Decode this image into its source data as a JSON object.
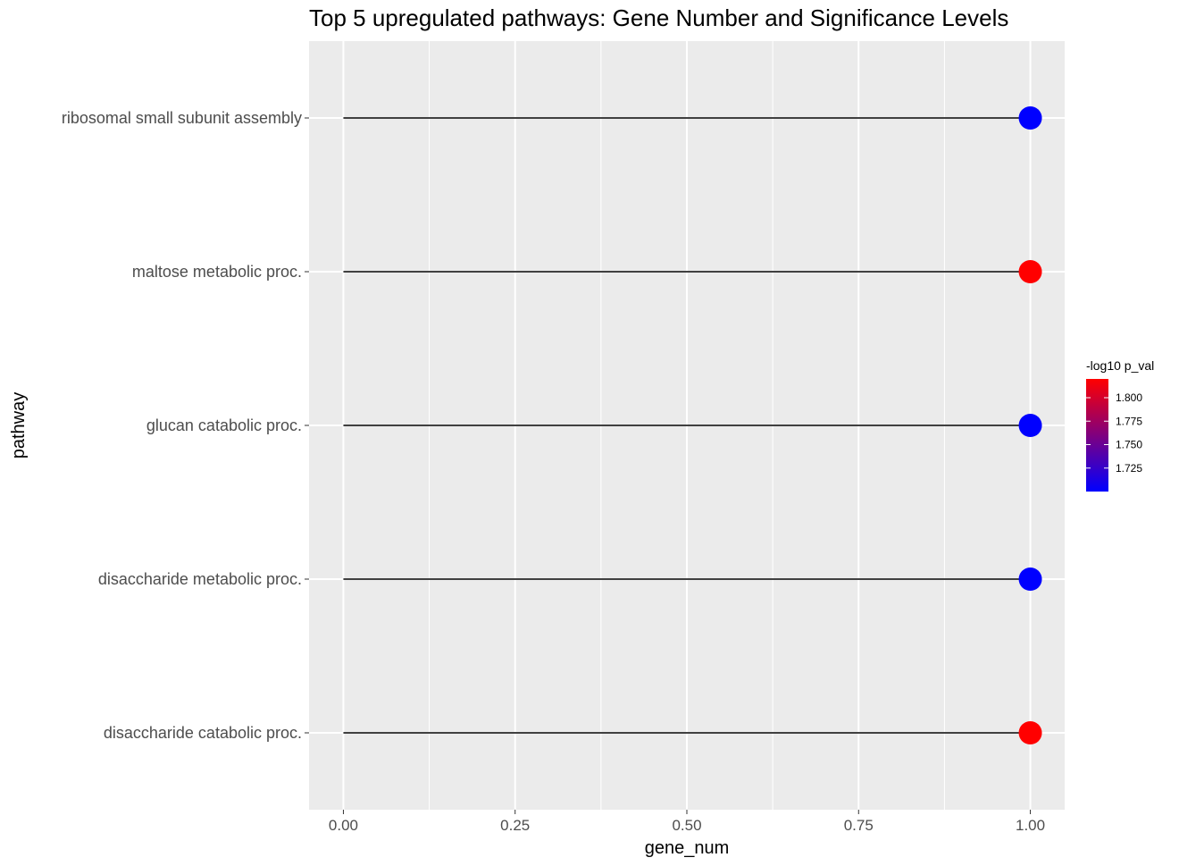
{
  "chart_data": {
    "type": "lollipop",
    "title": "Top 5 upregulated pathways: Gene Number and Significance Levels",
    "xlabel": "gene_num",
    "ylabel": "pathway",
    "xlim": [
      -0.05,
      1.05
    ],
    "x_ticks": [
      "0.00",
      "0.25",
      "0.50",
      "0.75",
      "1.00"
    ],
    "x_tick_values": [
      0,
      0.25,
      0.5,
      0.75,
      1.0
    ],
    "grid": true,
    "categories": [
      "ribosomal small subunit assembly",
      "maltose metabolic proc.",
      "glucan catabolic proc.",
      "disaccharide metabolic proc.",
      "disaccharide catabolic proc."
    ],
    "series": [
      {
        "values": [
          1,
          1,
          1,
          1,
          1
        ],
        "color_values": [
          1.7,
          1.82,
          1.7,
          1.7,
          1.82
        ]
      }
    ],
    "legend": {
      "title": "-log10 p_val",
      "position": "right",
      "ticks": [
        "1.800",
        "1.775",
        "1.750",
        "1.725"
      ],
      "tick_values": [
        1.8,
        1.775,
        1.75,
        1.725
      ],
      "range": [
        1.7,
        1.82
      ],
      "low_color": "#0000ff",
      "high_color": "#ff0000"
    },
    "colors": {
      "panel": "#ebebeb",
      "grid": "#ffffff",
      "stem": "#000000"
    }
  }
}
